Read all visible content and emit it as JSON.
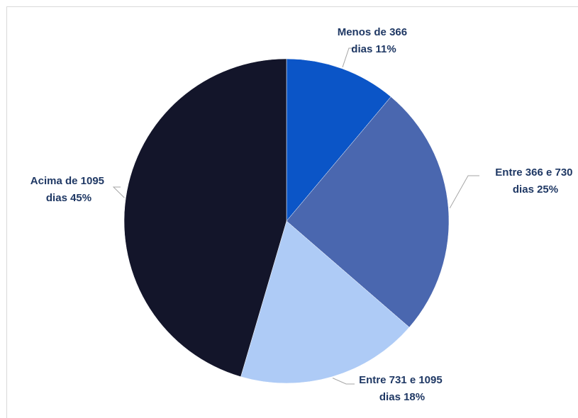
{
  "chart_data": {
    "type": "pie",
    "title": "",
    "legend": "none",
    "start_angle_deg": 0,
    "direction": "clockwise",
    "slices": [
      {
        "label_line1": "Menos de 366",
        "label_line2": "dias 11%",
        "value": 11,
        "color": "#0b55c7"
      },
      {
        "label_line1": "Entre 366 e 730",
        "label_line2": "dias 25%",
        "value": 25,
        "color": "#4a67af"
      },
      {
        "label_line1": "Entre 731 e 1095",
        "label_line2": "dias 18%",
        "value": 18,
        "color": "#aecbf6"
      },
      {
        "label_line1": "Acima de 1095",
        "label_line2": "dias 45%",
        "value": 45,
        "color": "#13152a"
      }
    ]
  }
}
